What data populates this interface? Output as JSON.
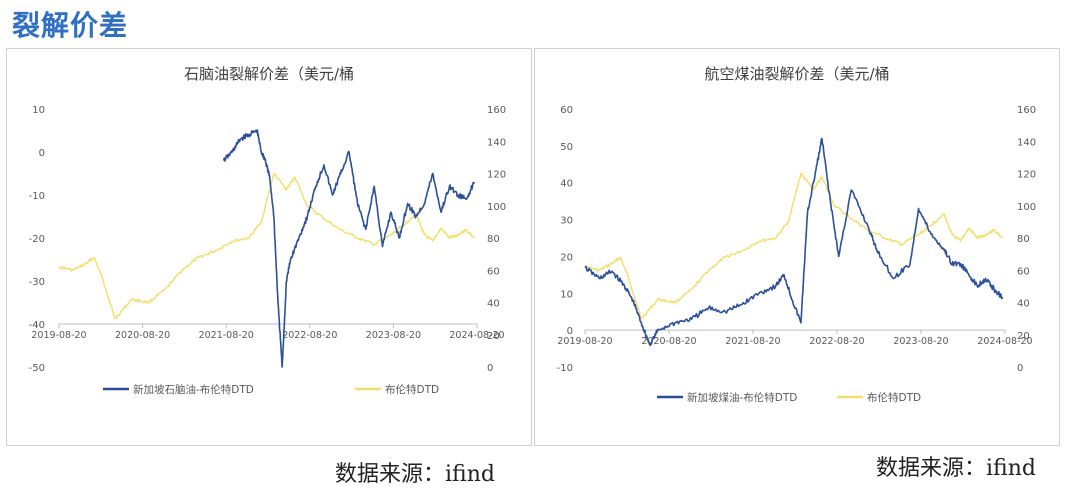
{
  "page": {
    "title": "裂解价差"
  },
  "colors": {
    "series_blue": "#2b4f9a",
    "series_yellow": "#f5dd6a",
    "axis": "#bfbfbf",
    "text": "#595959"
  },
  "chart_data": [
    {
      "type": "line",
      "title": "石脑油裂解价差（美元/桶",
      "x_ticks": [
        "2019-08-20",
        "2020-08-20",
        "2021-08-20",
        "2022-08-20",
        "2023-08-20",
        "2024-08-20"
      ],
      "x_range": [
        2019.63,
        2024.63
      ],
      "y_left": {
        "min": -50,
        "max": 10,
        "ticks": [
          "10",
          "0",
          "-10",
          "-20",
          "-30",
          "-40",
          "-50"
        ]
      },
      "y_right": {
        "min": 0,
        "max": 160,
        "ticks": [
          "160",
          "140",
          "120",
          "100",
          "80",
          "60",
          "40",
          "20",
          "0"
        ]
      },
      "x_axis_at_left_value": -40,
      "series": [
        {
          "name": "新加坡石脑油-布伦特DTD",
          "axis": "left",
          "color": "#2b4f9a",
          "x": [
            2021.6,
            2021.7,
            2021.8,
            2021.9,
            2022.0,
            2022.05,
            2022.1,
            2022.15,
            2022.2,
            2022.25,
            2022.3,
            2022.35,
            2022.4,
            2022.5,
            2022.6,
            2022.7,
            2022.8,
            2022.9,
            2023.0,
            2023.1,
            2023.2,
            2023.3,
            2023.4,
            2023.5,
            2023.6,
            2023.7,
            2023.8,
            2023.9,
            2024.0,
            2024.1,
            2024.2,
            2024.3,
            2024.4,
            2024.5,
            2024.6
          ],
          "y": [
            -2,
            0,
            3,
            4,
            5,
            0,
            -2,
            -6,
            -15,
            -35,
            -50,
            -30,
            -25,
            -20,
            -15,
            -8,
            -3,
            -10,
            -5,
            0,
            -12,
            -18,
            -8,
            -22,
            -14,
            -20,
            -12,
            -15,
            -12,
            -5,
            -14,
            -8,
            -10,
            -11,
            -7
          ]
        },
        {
          "name": "布伦特DTD",
          "axis": "right",
          "color": "#f5dd6a",
          "x": [
            2019.63,
            2019.8,
            2019.95,
            2020.05,
            2020.15,
            2020.3,
            2020.5,
            2020.7,
            2020.9,
            2021.1,
            2021.3,
            2021.5,
            2021.7,
            2021.9,
            2022.05,
            2022.2,
            2022.35,
            2022.45,
            2022.6,
            2022.8,
            2023.0,
            2023.2,
            2023.4,
            2023.6,
            2023.75,
            2023.9,
            2024.0,
            2024.1,
            2024.2,
            2024.3,
            2024.4,
            2024.5,
            2024.6
          ],
          "y": [
            62,
            60,
            64,
            68,
            55,
            30,
            42,
            40,
            48,
            60,
            68,
            72,
            78,
            80,
            90,
            120,
            110,
            118,
            100,
            92,
            85,
            80,
            76,
            82,
            88,
            95,
            82,
            78,
            86,
            80,
            82,
            85,
            80
          ]
        }
      ]
    },
    {
      "type": "line",
      "title": "航空煤油裂解价差（美元/桶",
      "x_ticks": [
        "2019-08-20",
        "2020-08-20",
        "2021-08-20",
        "2022-08-20",
        "2023-08-20",
        "2024-08-20"
      ],
      "x_range": [
        2019.63,
        2024.63
      ],
      "y_left": {
        "min": -10,
        "max": 60,
        "ticks": [
          "60",
          "50",
          "40",
          "30",
          "20",
          "10",
          "0",
          "-10"
        ]
      },
      "y_right": {
        "min": 0,
        "max": 160,
        "ticks": [
          "160",
          "140",
          "120",
          "100",
          "80",
          "60",
          "40",
          "20",
          "0"
        ]
      },
      "x_axis_at_left_value": 0,
      "series": [
        {
          "name": "新加坡煤油-布伦特DTD",
          "axis": "left",
          "color": "#2b4f9a",
          "x": [
            2019.63,
            2019.8,
            2019.95,
            2020.1,
            2020.2,
            2020.3,
            2020.4,
            2020.5,
            2020.7,
            2020.9,
            2021.1,
            2021.3,
            2021.5,
            2021.7,
            2021.9,
            2022.0,
            2022.1,
            2022.2,
            2022.28,
            2022.35,
            2022.45,
            2022.55,
            2022.65,
            2022.8,
            2023.0,
            2023.1,
            2023.3,
            2023.5,
            2023.6,
            2023.75,
            2023.9,
            2024.0,
            2024.1,
            2024.2,
            2024.3,
            2024.4,
            2024.5,
            2024.6
          ],
          "y": [
            17,
            14,
            16,
            12,
            8,
            2,
            -4,
            0,
            2,
            3,
            6,
            5,
            7,
            10,
            12,
            15,
            8,
            2,
            32,
            40,
            52,
            35,
            20,
            38,
            28,
            22,
            14,
            18,
            33,
            26,
            22,
            18,
            18,
            15,
            12,
            14,
            11,
            9
          ]
        },
        {
          "name": "布伦特DTD",
          "axis": "right",
          "color": "#f5dd6a",
          "x": [
            2019.63,
            2019.8,
            2019.95,
            2020.05,
            2020.15,
            2020.3,
            2020.5,
            2020.7,
            2020.9,
            2021.1,
            2021.3,
            2021.5,
            2021.7,
            2021.9,
            2022.05,
            2022.2,
            2022.35,
            2022.45,
            2022.6,
            2022.8,
            2023.0,
            2023.2,
            2023.4,
            2023.6,
            2023.75,
            2023.9,
            2024.0,
            2024.1,
            2024.2,
            2024.3,
            2024.4,
            2024.5,
            2024.6
          ],
          "y": [
            62,
            60,
            64,
            68,
            55,
            30,
            42,
            40,
            48,
            60,
            68,
            72,
            78,
            80,
            90,
            120,
            110,
            118,
            100,
            92,
            85,
            80,
            76,
            82,
            88,
            95,
            82,
            78,
            86,
            80,
            82,
            85,
            80
          ]
        }
      ]
    }
  ],
  "source_left": "数据来源：ifind",
  "source_right": "数据来源：ifind"
}
